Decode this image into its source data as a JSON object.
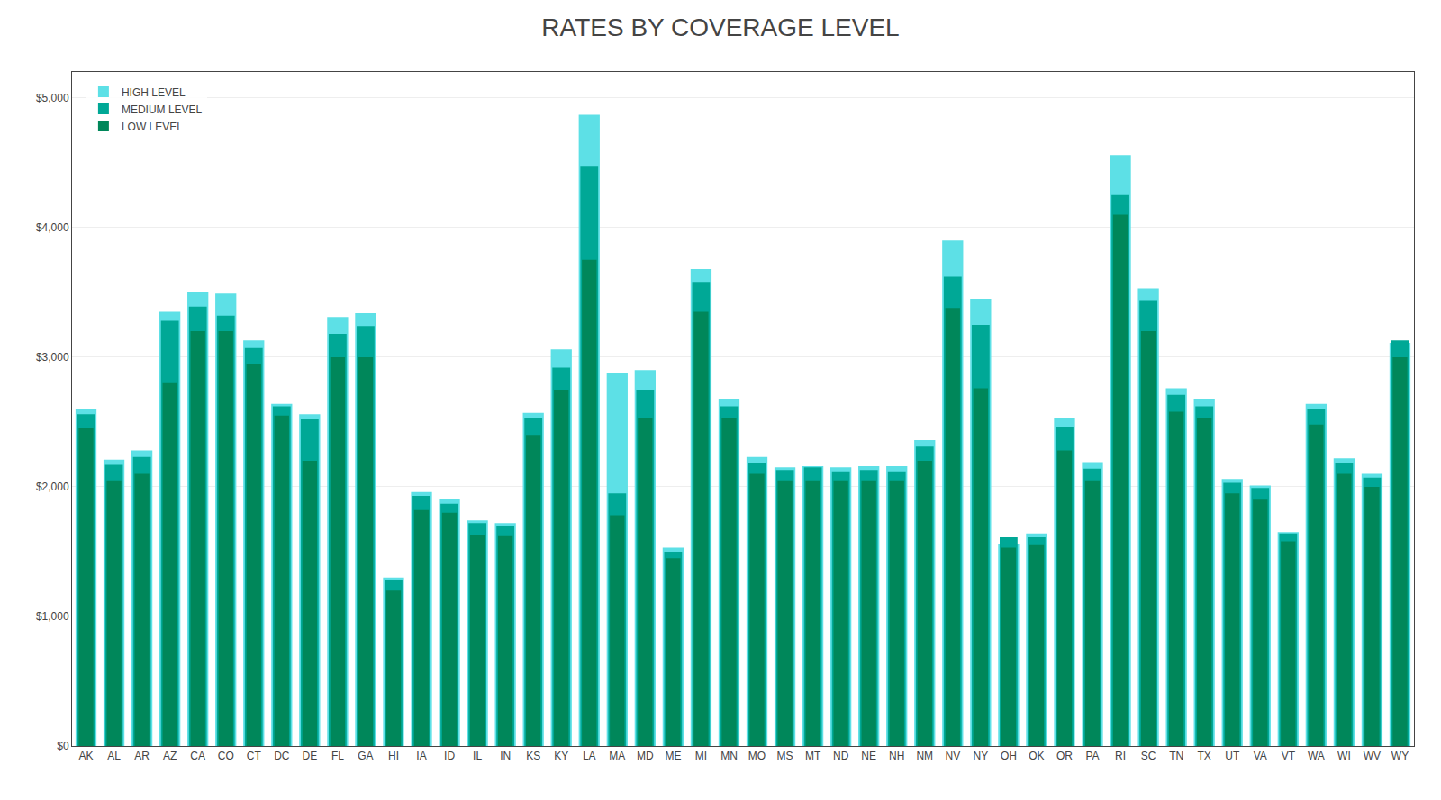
{
  "chart_data": {
    "type": "bar",
    "title": "RATES BY COVERAGE LEVEL",
    "categories": [
      "AK",
      "AL",
      "AR",
      "AZ",
      "CA",
      "CO",
      "CT",
      "DC",
      "DE",
      "FL",
      "GA",
      "HI",
      "IA",
      "ID",
      "IL",
      "IN",
      "KS",
      "KY",
      "LA",
      "MA",
      "MD",
      "ME",
      "MI",
      "MN",
      "MO",
      "MS",
      "MT",
      "ND",
      "NE",
      "NH",
      "NM",
      "NV",
      "NY",
      "OH",
      "OK",
      "OR",
      "PA",
      "RI",
      "SC",
      "TN",
      "TX",
      "UT",
      "VA",
      "VT",
      "WA",
      "WI",
      "WV",
      "WY"
    ],
    "series": [
      {
        "name": "HIGH LEVEL",
        "color": "#5de0e6",
        "values": [
          2600,
          2210,
          2280,
          3350,
          3500,
          3490,
          3130,
          2640,
          2560,
          3310,
          3340,
          1300,
          1960,
          1910,
          1740,
          1720,
          2570,
          3060,
          4870,
          2880,
          2900,
          1530,
          3680,
          2680,
          2230,
          2150,
          2160,
          2150,
          2160,
          2160,
          2360,
          3900,
          3450,
          1560,
          1640,
          2530,
          2190,
          4560,
          3530,
          2760,
          2680,
          2060,
          2010,
          1650,
          2640,
          2220,
          2100,
          3110
        ]
      },
      {
        "name": "MEDIUM LEVEL",
        "color": "#00a896",
        "values": [
          2560,
          2170,
          2230,
          3280,
          3390,
          3320,
          3070,
          2620,
          2520,
          3180,
          3240,
          1280,
          1930,
          1870,
          1720,
          1700,
          2530,
          2920,
          4470,
          1950,
          2750,
          1500,
          3580,
          2620,
          2180,
          2130,
          2150,
          2120,
          2130,
          2120,
          2310,
          3620,
          3250,
          1610,
          1610,
          2460,
          2140,
          4250,
          3440,
          2710,
          2620,
          2030,
          1990,
          1640,
          2600,
          2180,
          2070,
          3130
        ]
      },
      {
        "name": "LOW LEVEL",
        "color": "#00875a",
        "values": [
          2450,
          2050,
          2100,
          2800,
          3200,
          3200,
          2950,
          2550,
          2200,
          3000,
          3000,
          1200,
          1820,
          1800,
          1630,
          1620,
          2400,
          2750,
          3750,
          1780,
          2530,
          1450,
          3350,
          2530,
          2100,
          2050,
          2050,
          2050,
          2050,
          2050,
          2200,
          3380,
          2760,
          1530,
          1550,
          2280,
          2050,
          4100,
          3200,
          2580,
          2530,
          1950,
          1900,
          1580,
          2480,
          2100,
          2000,
          3000
        ]
      }
    ],
    "ylim": [
      0,
      5200
    ],
    "yticks": [
      {
        "value": 0,
        "label": "$0"
      },
      {
        "value": 1000,
        "label": "$1,000"
      },
      {
        "value": 2000,
        "label": "$2,000"
      },
      {
        "value": 3000,
        "label": "$3,000"
      },
      {
        "value": 4000,
        "label": "$4,000"
      },
      {
        "value": 5000,
        "label": "$5,000"
      }
    ],
    "grid": true,
    "stacked": false,
    "legend": "upper left"
  }
}
